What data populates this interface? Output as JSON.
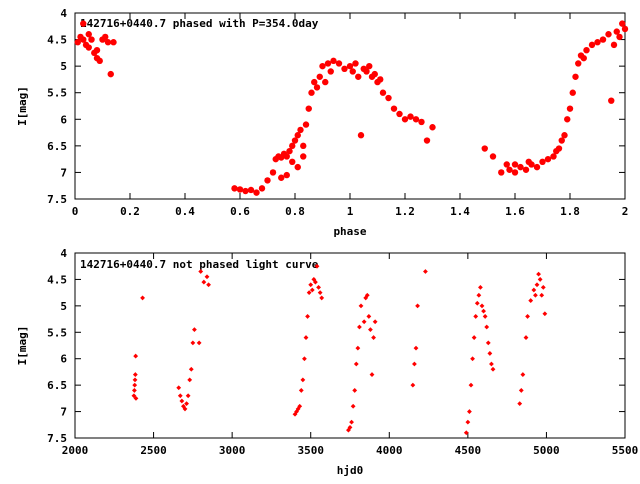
{
  "chart_data": [
    {
      "type": "scatter",
      "title": "142716+0440.7 phased with P=354.0day",
      "xlabel": "phase",
      "ylabel": "I[mag]",
      "xlim": [
        0,
        2
      ],
      "ylim": [
        7.5,
        4
      ],
      "y_inverted": true,
      "grid": false,
      "xticks": [
        "0",
        "0.2",
        "0.4",
        "0.6",
        "0.8",
        "1",
        "1.2",
        "1.4",
        "1.6",
        "1.8",
        "2"
      ],
      "yticks": [
        "4",
        "4.5",
        "5",
        "5.5",
        "6",
        "6.5",
        "7",
        "7.5"
      ],
      "marker_color": "#ff0000",
      "marker": "filled-circle",
      "series": [
        {
          "points": [
            [
              0.01,
              4.55
            ],
            [
              0.02,
              4.45
            ],
            [
              0.03,
              4.5
            ],
            [
              0.04,
              4.6
            ],
            [
              0.05,
              4.4
            ],
            [
              0.06,
              4.5
            ],
            [
              0.07,
              4.75
            ],
            [
              0.08,
              4.85
            ],
            [
              0.09,
              4.9
            ],
            [
              0.1,
              4.5
            ],
            [
              0.11,
              4.45
            ],
            [
              0.12,
              4.55
            ],
            [
              0.13,
              5.15
            ],
            [
              0.14,
              4.55
            ],
            [
              0.03,
              4.2
            ],
            [
              0.05,
              4.65
            ],
            [
              0.08,
              4.7
            ],
            [
              0.58,
              7.3
            ],
            [
              0.6,
              7.32
            ],
            [
              0.62,
              7.35
            ],
            [
              0.64,
              7.33
            ],
            [
              0.66,
              7.38
            ],
            [
              0.68,
              7.3
            ],
            [
              0.7,
              7.15
            ],
            [
              0.72,
              7.0
            ],
            [
              0.73,
              6.75
            ],
            [
              0.74,
              6.7
            ],
            [
              0.75,
              6.72
            ],
            [
              0.76,
              6.65
            ],
            [
              0.77,
              6.7
            ],
            [
              0.78,
              6.6
            ],
            [
              0.79,
              6.5
            ],
            [
              0.8,
              6.4
            ],
            [
              0.81,
              6.3
            ],
            [
              0.82,
              6.2
            ],
            [
              0.83,
              6.5
            ],
            [
              0.84,
              6.1
            ],
            [
              0.85,
              5.8
            ],
            [
              0.86,
              5.5
            ],
            [
              0.87,
              5.3
            ],
            [
              0.88,
              5.4
            ],
            [
              0.89,
              5.2
            ],
            [
              0.9,
              5.0
            ],
            [
              0.91,
              5.3
            ],
            [
              0.92,
              4.95
            ],
            [
              0.93,
              5.1
            ],
            [
              0.94,
              4.9
            ],
            [
              0.96,
              4.95
            ],
            [
              0.98,
              5.05
            ],
            [
              1.0,
              5.0
            ],
            [
              1.01,
              5.1
            ],
            [
              1.02,
              4.95
            ],
            [
              1.03,
              5.2
            ],
            [
              1.04,
              6.3
            ],
            [
              1.05,
              5.05
            ],
            [
              1.06,
              5.1
            ],
            [
              1.07,
              5.0
            ],
            [
              1.08,
              5.2
            ],
            [
              1.09,
              5.15
            ],
            [
              1.1,
              5.3
            ],
            [
              1.11,
              5.25
            ],
            [
              1.12,
              5.5
            ],
            [
              1.14,
              5.6
            ],
            [
              1.16,
              5.8
            ],
            [
              1.18,
              5.9
            ],
            [
              1.2,
              6.0
            ],
            [
              1.22,
              5.95
            ],
            [
              1.24,
              6.0
            ],
            [
              1.26,
              6.05
            ],
            [
              1.28,
              6.4
            ],
            [
              1.3,
              6.15
            ],
            [
              0.79,
              6.8
            ],
            [
              0.81,
              6.9
            ],
            [
              0.77,
              7.05
            ],
            [
              0.75,
              7.1
            ],
            [
              0.83,
              6.7
            ],
            [
              1.49,
              6.55
            ],
            [
              1.52,
              6.7
            ],
            [
              1.55,
              7.0
            ],
            [
              1.57,
              6.85
            ],
            [
              1.58,
              6.95
            ],
            [
              1.6,
              7.0
            ],
            [
              1.62,
              6.9
            ],
            [
              1.64,
              6.95
            ],
            [
              1.66,
              6.85
            ],
            [
              1.68,
              6.9
            ],
            [
              1.7,
              6.8
            ],
            [
              1.72,
              6.75
            ],
            [
              1.74,
              6.7
            ],
            [
              1.76,
              6.55
            ],
            [
              1.77,
              6.4
            ],
            [
              1.78,
              6.3
            ],
            [
              1.79,
              6.0
            ],
            [
              1.8,
              5.8
            ],
            [
              1.81,
              5.5
            ],
            [
              1.82,
              5.2
            ],
            [
              1.83,
              4.95
            ],
            [
              1.84,
              4.8
            ],
            [
              1.85,
              4.85
            ],
            [
              1.86,
              4.7
            ],
            [
              1.88,
              4.6
            ],
            [
              1.9,
              4.55
            ],
            [
              1.92,
              4.5
            ],
            [
              1.94,
              4.4
            ],
            [
              1.95,
              5.65
            ],
            [
              1.96,
              4.6
            ],
            [
              1.98,
              4.45
            ],
            [
              2.0,
              4.3
            ],
            [
              1.97,
              4.35
            ],
            [
              1.99,
              4.2
            ],
            [
              1.6,
              6.85
            ],
            [
              1.65,
              6.8
            ],
            [
              1.75,
              6.6
            ]
          ]
        }
      ]
    },
    {
      "type": "scatter",
      "title": "142716+0440.7 not phased light curve",
      "xlabel": "hjd0",
      "ylabel": "I[mag]",
      "xlim": [
        2000,
        5500
      ],
      "ylim": [
        7.5,
        4
      ],
      "y_inverted": true,
      "grid": false,
      "xticks": [
        "2000",
        "2500",
        "3000",
        "3500",
        "4000",
        "4500",
        "5000",
        "5500"
      ],
      "yticks": [
        "4",
        "4.5",
        "5",
        "5.5",
        "6",
        "6.5",
        "7",
        "7.5"
      ],
      "marker_color": "#ff0000",
      "marker": "small-diamond",
      "series": [
        {
          "points": [
            [
              2375,
              6.7
            ],
            [
              2378,
              6.6
            ],
            [
              2380,
              6.5
            ],
            [
              2382,
              6.4
            ],
            [
              2384,
              6.3
            ],
            [
              2386,
              5.95
            ],
            [
              2388,
              6.75
            ],
            [
              2430,
              4.85
            ],
            [
              2660,
              6.55
            ],
            [
              2670,
              6.7
            ],
            [
              2680,
              6.8
            ],
            [
              2690,
              6.9
            ],
            [
              2700,
              6.95
            ],
            [
              2710,
              6.85
            ],
            [
              2720,
              6.7
            ],
            [
              2730,
              6.4
            ],
            [
              2740,
              6.2
            ],
            [
              2750,
              5.7
            ],
            [
              2760,
              5.45
            ],
            [
              2790,
              5.7
            ],
            [
              2800,
              4.35
            ],
            [
              2820,
              4.55
            ],
            [
              2840,
              4.45
            ],
            [
              2850,
              4.6
            ],
            [
              3400,
              7.05
            ],
            [
              3410,
              7.0
            ],
            [
              3420,
              6.95
            ],
            [
              3430,
              6.9
            ],
            [
              3440,
              6.6
            ],
            [
              3450,
              6.4
            ],
            [
              3460,
              6.0
            ],
            [
              3470,
              5.6
            ],
            [
              3480,
              5.2
            ],
            [
              3490,
              4.75
            ],
            [
              3500,
              4.6
            ],
            [
              3510,
              4.7
            ],
            [
              3520,
              4.5
            ],
            [
              3530,
              4.55
            ],
            [
              3540,
              4.25
            ],
            [
              3550,
              4.65
            ],
            [
              3560,
              4.75
            ],
            [
              3570,
              4.85
            ],
            [
              3740,
              7.35
            ],
            [
              3750,
              7.3
            ],
            [
              3760,
              7.2
            ],
            [
              3770,
              6.9
            ],
            [
              3780,
              6.6
            ],
            [
              3790,
              6.1
            ],
            [
              3800,
              5.8
            ],
            [
              3810,
              5.4
            ],
            [
              3820,
              5.0
            ],
            [
              3840,
              5.3
            ],
            [
              3850,
              4.85
            ],
            [
              3860,
              4.8
            ],
            [
              3870,
              5.2
            ],
            [
              3880,
              5.45
            ],
            [
              3890,
              6.3
            ],
            [
              3900,
              5.6
            ],
            [
              3910,
              5.3
            ],
            [
              4150,
              6.5
            ],
            [
              4160,
              6.1
            ],
            [
              4170,
              5.8
            ],
            [
              4180,
              5.0
            ],
            [
              4230,
              4.35
            ],
            [
              4490,
              7.4
            ],
            [
              4500,
              7.2
            ],
            [
              4510,
              7.0
            ],
            [
              4520,
              6.5
            ],
            [
              4530,
              6.0
            ],
            [
              4540,
              5.6
            ],
            [
              4550,
              5.2
            ],
            [
              4560,
              4.95
            ],
            [
              4570,
              4.8
            ],
            [
              4580,
              4.65
            ],
            [
              4590,
              5.0
            ],
            [
              4600,
              5.1
            ],
            [
              4610,
              5.2
            ],
            [
              4620,
              5.4
            ],
            [
              4630,
              5.7
            ],
            [
              4640,
              5.9
            ],
            [
              4650,
              6.1
            ],
            [
              4660,
              6.2
            ],
            [
              4830,
              6.85
            ],
            [
              4840,
              6.6
            ],
            [
              4850,
              6.3
            ],
            [
              4870,
              5.6
            ],
            [
              4880,
              5.2
            ],
            [
              4900,
              4.9
            ],
            [
              4920,
              4.7
            ],
            [
              4930,
              4.8
            ],
            [
              4940,
              4.6
            ],
            [
              4950,
              4.4
            ],
            [
              4960,
              4.5
            ],
            [
              4970,
              4.8
            ],
            [
              4980,
              4.65
            ],
            [
              4990,
              5.15
            ]
          ]
        }
      ]
    }
  ]
}
